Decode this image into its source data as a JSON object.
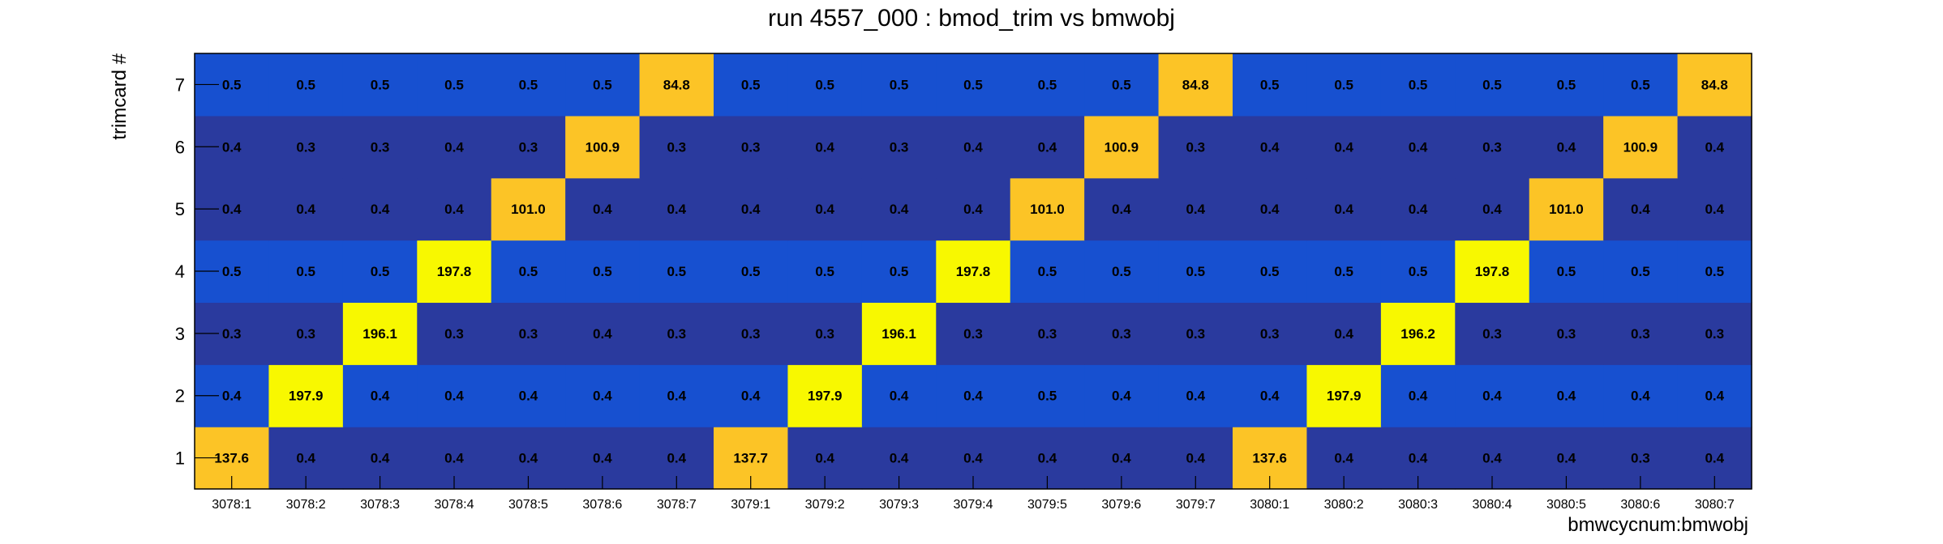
{
  "chart_data": {
    "type": "heatmap",
    "title": "run 4557_000 : bmod_trim vs bmwobj",
    "xlabel": "bmwcycnum:bmwobj",
    "ylabel": "trimcard #",
    "x_categories": [
      "3078:1",
      "3078:2",
      "3078:3",
      "3078:4",
      "3078:5",
      "3078:6",
      "3078:7",
      "3079:1",
      "3079:2",
      "3079:3",
      "3079:4",
      "3079:5",
      "3079:6",
      "3079:7",
      "3080:1",
      "3080:2",
      "3080:3",
      "3080:4",
      "3080:5",
      "3080:6",
      "3080:7"
    ],
    "y_categories": [
      "1",
      "2",
      "3",
      "4",
      "5",
      "6",
      "7"
    ],
    "values": [
      [
        "137.6",
        "0.4",
        "0.4",
        "0.4",
        "0.4",
        "0.4",
        "0.4",
        "137.7",
        "0.4",
        "0.4",
        "0.4",
        "0.4",
        "0.4",
        "0.4",
        "137.6",
        "0.4",
        "0.4",
        "0.4",
        "0.4",
        "0.3",
        "0.4"
      ],
      [
        "0.4",
        "197.9",
        "0.4",
        "0.4",
        "0.4",
        "0.4",
        "0.4",
        "0.4",
        "197.9",
        "0.4",
        "0.4",
        "0.5",
        "0.4",
        "0.4",
        "0.4",
        "197.9",
        "0.4",
        "0.4",
        "0.4",
        "0.4",
        "0.4"
      ],
      [
        "0.3",
        "0.3",
        "196.1",
        "0.3",
        "0.3",
        "0.4",
        "0.3",
        "0.3",
        "0.3",
        "196.1",
        "0.3",
        "0.3",
        "0.3",
        "0.3",
        "0.3",
        "0.4",
        "196.2",
        "0.3",
        "0.3",
        "0.3",
        "0.3"
      ],
      [
        "0.5",
        "0.5",
        "0.5",
        "197.8",
        "0.5",
        "0.5",
        "0.5",
        "0.5",
        "0.5",
        "0.5",
        "197.8",
        "0.5",
        "0.5",
        "0.5",
        "0.5",
        "0.5",
        "0.5",
        "197.8",
        "0.5",
        "0.5",
        "0.5"
      ],
      [
        "0.4",
        "0.4",
        "0.4",
        "0.4",
        "101.0",
        "0.4",
        "0.4",
        "0.4",
        "0.4",
        "0.4",
        "0.4",
        "101.0",
        "0.4",
        "0.4",
        "0.4",
        "0.4",
        "0.4",
        "0.4",
        "101.0",
        "0.4",
        "0.4"
      ],
      [
        "0.4",
        "0.3",
        "0.3",
        "0.4",
        "0.3",
        "100.9",
        "0.3",
        "0.3",
        "0.4",
        "0.3",
        "0.4",
        "0.4",
        "100.9",
        "0.3",
        "0.4",
        "0.4",
        "0.4",
        "0.3",
        "0.4",
        "100.9",
        "0.4"
      ],
      [
        "0.5",
        "0.5",
        "0.5",
        "0.5",
        "0.5",
        "0.5",
        "84.8",
        "0.5",
        "0.5",
        "0.5",
        "0.5",
        "0.5",
        "0.5",
        "84.8",
        "0.5",
        "0.5",
        "0.5",
        "0.5",
        "0.5",
        "0.5",
        "84.8"
      ]
    ],
    "colors": {
      "low_dark": "#2a3a9e",
      "low_light": "#1750d0",
      "mid": "#fcc426",
      "high": "#f8f800",
      "border": "#000000"
    }
  }
}
